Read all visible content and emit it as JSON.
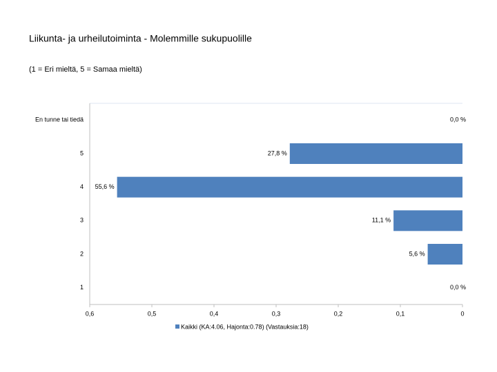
{
  "chart_data": {
    "type": "bar",
    "orientation": "horizontal",
    "title": "Liikunta- ja urheilutoiminta - Molemmille sukupuolille",
    "subtitle": "(1 = Eri mieltä, 5 = Samaa mieltä)",
    "categories": [
      "En tunne tai tiedä",
      "5",
      "4",
      "3",
      "2",
      "1"
    ],
    "series": [
      {
        "name": "Kaikki (KA:4.06, Hajonta:0.78) (Vastauksia:18)",
        "color": "#4f81bd",
        "values": [
          0,
          0.278,
          0.556,
          0.111,
          0.056,
          0
        ],
        "value_labels": [
          "0,0 %",
          "27,8 %",
          "55,6 %",
          "11,1 %",
          "5,6 %",
          "0,0 %"
        ]
      }
    ],
    "xlim": [
      0.6,
      0
    ],
    "xticks": [
      {
        "value": 0.6,
        "label": "0,6"
      },
      {
        "value": 0.5,
        "label": "0,5"
      },
      {
        "value": 0.4,
        "label": "0,4"
      },
      {
        "value": 0.3,
        "label": "0,3"
      },
      {
        "value": 0.2,
        "label": "0,2"
      },
      {
        "value": 0.1,
        "label": "0,1"
      },
      0
    ]
  }
}
